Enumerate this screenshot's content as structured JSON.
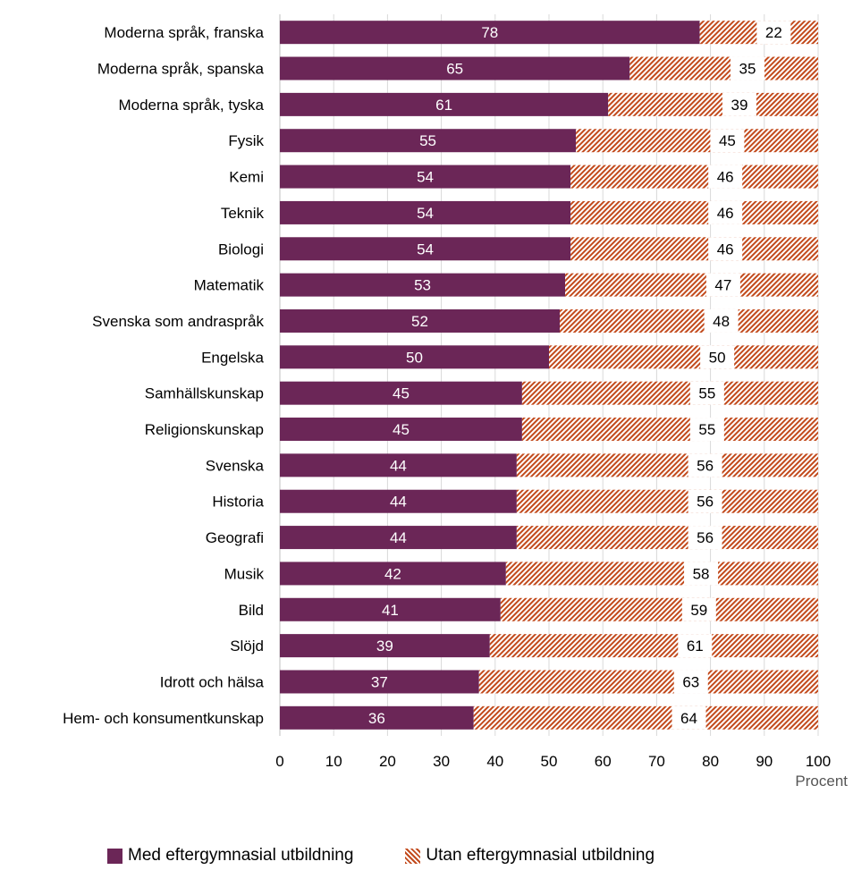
{
  "chart_data": {
    "type": "bar",
    "orientation": "horizontal",
    "stacked": true,
    "categories": [
      "Moderna språk, franska",
      "Moderna språk, spanska",
      "Moderna språk, tyska",
      "Fysik",
      "Kemi",
      "Teknik",
      "Biologi",
      "Matematik",
      "Svenska som andraspråk",
      "Engelska",
      "Samhällskunskap",
      "Religionskunskap",
      "Svenska",
      "Historia",
      "Geografi",
      "Musik",
      "Bild",
      "Slöjd",
      "Idrott och hälsa",
      "Hem- och konsumentkunskap"
    ],
    "series": [
      {
        "name": "Med eftergymnasial utbildning",
        "color": "#6b2657",
        "values": [
          78,
          65,
          61,
          55,
          54,
          54,
          54,
          53,
          52,
          50,
          45,
          45,
          44,
          44,
          44,
          42,
          41,
          39,
          37,
          36
        ]
      },
      {
        "name": "Utan eftergymnasial utbildning",
        "color": "#c24a1c",
        "values": [
          22,
          35,
          39,
          45,
          46,
          46,
          46,
          47,
          48,
          50,
          55,
          55,
          56,
          56,
          56,
          58,
          59,
          61,
          63,
          64
        ]
      }
    ],
    "xlim": [
      0,
      100
    ],
    "xticks": [
      0,
      10,
      20,
      30,
      40,
      50,
      60,
      70,
      80,
      90,
      100
    ],
    "grid": true,
    "legend": "bottom",
    "unit_label": "Procent"
  }
}
